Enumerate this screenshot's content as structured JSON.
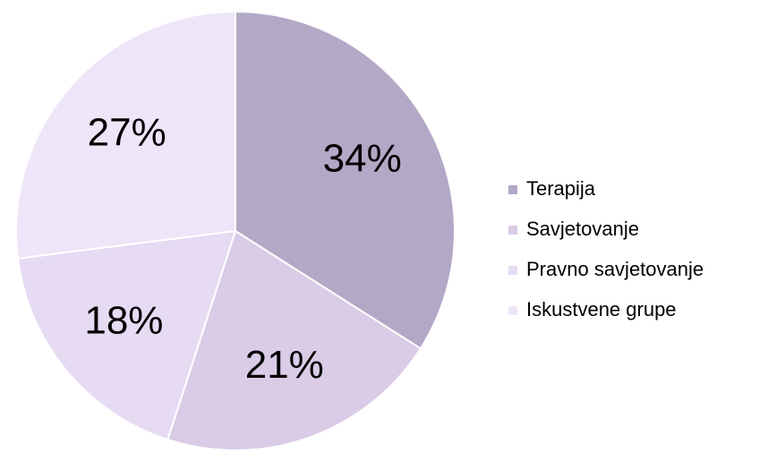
{
  "chart_data": {
    "type": "pie",
    "categories": [
      "Terapija",
      "Savjetovanje",
      "Pravno savjetovanje",
      "Iskustvene grupe"
    ],
    "values": [
      34,
      21,
      18,
      27
    ],
    "value_labels": [
      "34%",
      "21%",
      "18%",
      "27%"
    ],
    "colors": [
      "#b3a8c6",
      "#dacbe7",
      "#e6dbf3",
      "#eee6f8"
    ],
    "legend": "right"
  }
}
